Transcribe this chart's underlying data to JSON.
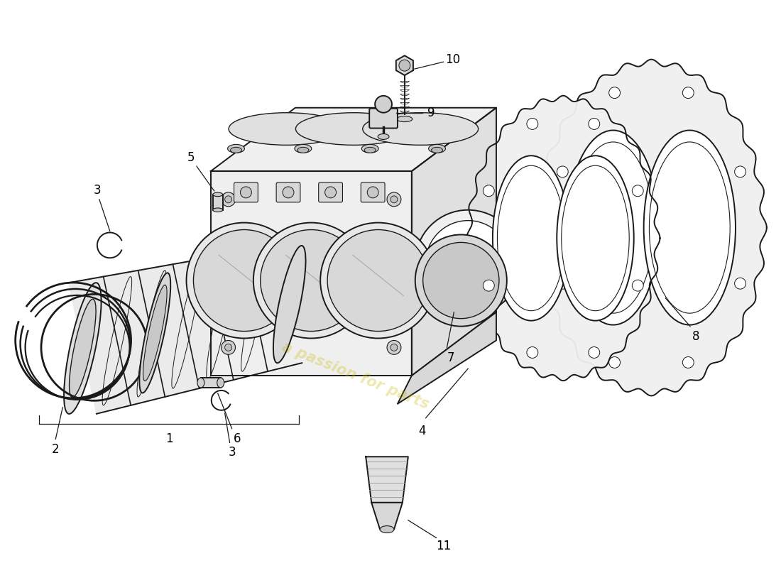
{
  "background_color": "#ffffff",
  "line_color": "#1a1a1a",
  "watermark_text": "a passion for parts",
  "watermark_color": "#c8b800",
  "watermark_alpha": 0.3,
  "figsize": [
    11.0,
    8.0
  ],
  "dpi": 100
}
